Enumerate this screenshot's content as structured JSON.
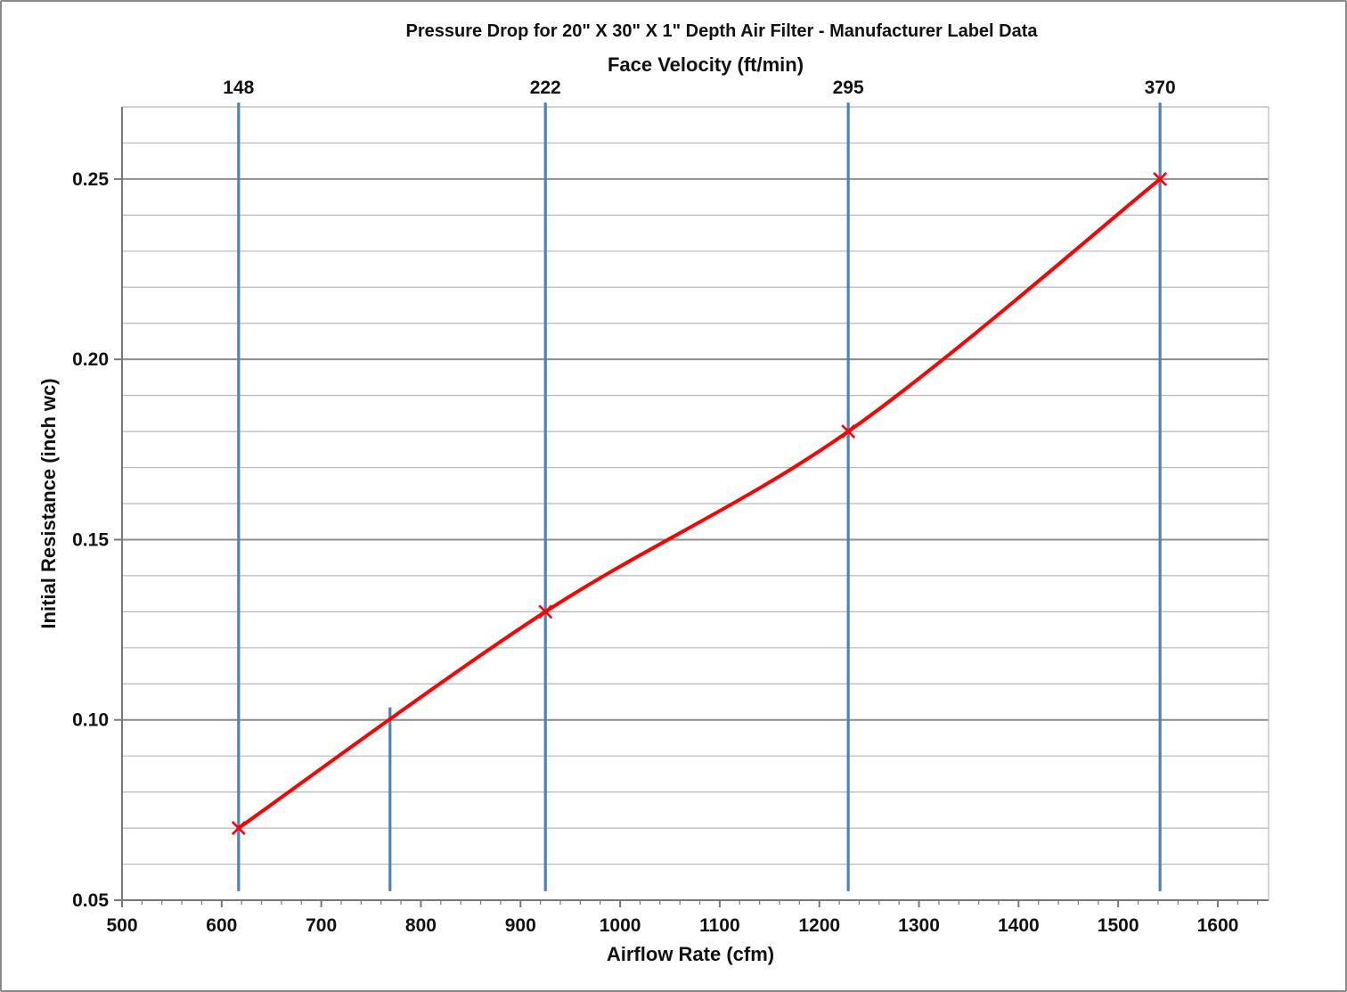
{
  "chart_data": {
    "type": "line",
    "title": "Pressure Drop for 20\" X 30\" X 1\" Depth Air Filter - Manufacturer Label Data",
    "legend": "none",
    "grid": "horizontal major and minor",
    "x_axis": {
      "label": "Airflow Rate (cfm)",
      "min": 500,
      "max": 1651,
      "major_tick_step": 100,
      "minor_tick_step": 20,
      "tick_labels": [
        500,
        600,
        700,
        800,
        900,
        1000,
        1100,
        1200,
        1300,
        1400,
        1500,
        1600
      ]
    },
    "y_axis": {
      "label": "Initial Resistance (inch wc)",
      "min": 0.05,
      "max": 0.27,
      "major_step": 0.05,
      "minor_step": 0.01,
      "ticks": [
        {
          "value": 0.05,
          "label": "0.05"
        },
        {
          "value": 0.1,
          "label": "0.10"
        },
        {
          "value": 0.15,
          "label": "0.15"
        },
        {
          "value": 0.2,
          "label": "0.20"
        },
        {
          "value": 0.25,
          "label": "0.25"
        }
      ]
    },
    "top_axis": {
      "label": "Face Velocity (ft/min)",
      "ticks": [
        {
          "label": "148",
          "cfm": 617
        },
        {
          "label": "222",
          "cfm": 925
        },
        {
          "label": "295",
          "cfm": 1229
        },
        {
          "label": "370",
          "cfm": 1542
        }
      ]
    },
    "series": [
      {
        "name": "Manufacturer Label Data",
        "color": "#ff0000",
        "marker": "x",
        "smooth": true,
        "points": [
          {
            "cfm": 617,
            "inwc": 0.07
          },
          {
            "cfm": 925,
            "inwc": 0.13
          },
          {
            "cfm": 1229,
            "inwc": 0.18
          },
          {
            "cfm": 1542,
            "inwc": 0.25
          }
        ]
      }
    ],
    "vertical_reference_lines": [
      {
        "cfm": 617,
        "from": 0.0525,
        "to": 0.2712
      },
      {
        "cfm": 769,
        "from": 0.0525,
        "to": 0.1035
      },
      {
        "cfm": 925,
        "from": 0.0525,
        "to": 0.2712
      },
      {
        "cfm": 1229,
        "from": 0.0525,
        "to": 0.2712
      },
      {
        "cfm": 1542,
        "from": 0.0525,
        "to": 0.2712
      }
    ],
    "colors": {
      "series_line": "#ff0000",
      "reference_line": "#4f81bd",
      "major_gridline": "#8c8c8c",
      "minor_gridline": "#b8b8b8",
      "axis_line": "#787878",
      "text": "#111111",
      "background": "#ffffff",
      "frame_border": "#898989"
    }
  }
}
